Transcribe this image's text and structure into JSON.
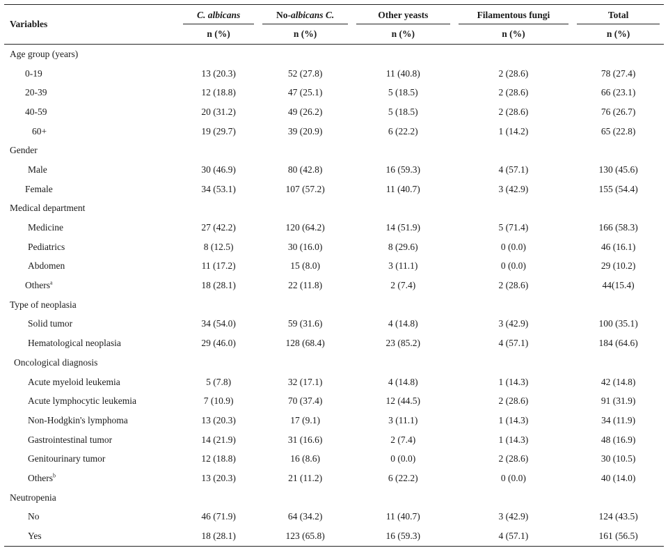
{
  "header": {
    "variables": "Variables",
    "columns": [
      {
        "pre": "",
        "italic": "C. albicans",
        "post": ""
      },
      {
        "pre": "No-",
        "italic": "albicans C.",
        "post": ""
      },
      {
        "pre": "Other yeasts",
        "italic": "",
        "post": ""
      },
      {
        "pre": "Filamentous fungi",
        "italic": "",
        "post": ""
      },
      {
        "pre": "Total",
        "italic": "",
        "post": ""
      }
    ],
    "sub": "n (%)"
  },
  "rows": [
    {
      "type": "cat",
      "label": "Age group (years)"
    },
    {
      "type": "item",
      "label": "0-19",
      "sup": "",
      "indent": "indent2",
      "v": [
        "13 (20.3)",
        "52 (27.8)",
        "11 (40.8)",
        "2 (28.6)",
        "78 (27.4)"
      ]
    },
    {
      "type": "item",
      "label": "20-39",
      "sup": "",
      "indent": "indent2",
      "v": [
        "12 (18.8)",
        "47 (25.1)",
        "5 (18.5)",
        "2 (28.6)",
        "66 (23.1)"
      ]
    },
    {
      "type": "item",
      "label": "40-59",
      "sup": "",
      "indent": "indent2",
      "v": [
        "20 (31.2)",
        "49 (26.2)",
        "5 (18.5)",
        "2 (28.6)",
        "76 (26.7)"
      ]
    },
    {
      "type": "item",
      "label": "60+",
      "sup": "",
      "indent": "indent3",
      "v": [
        "19 (29.7)",
        "39 (20.9)",
        "6 (22.2)",
        "1 (14.2)",
        "65 (22.8)"
      ]
    },
    {
      "type": "cat",
      "label": "Gender"
    },
    {
      "type": "item",
      "label": "Male",
      "sup": "",
      "indent": "",
      "v": [
        "30 (46.9)",
        "80 (42.8)",
        "16 (59.3)",
        "4 (57.1)",
        "130 (45.6)"
      ]
    },
    {
      "type": "item",
      "label": "Female",
      "sup": "",
      "indent": "indent2",
      "v": [
        "34 (53.1)",
        "107 (57.2)",
        "11 (40.7)",
        "3 (42.9)",
        "155 (54.4)"
      ]
    },
    {
      "type": "cat",
      "label": "Medical department"
    },
    {
      "type": "item",
      "label": "Medicine",
      "sup": "",
      "indent": "",
      "v": [
        "27 (42.2)",
        "120 (64.2)",
        "14 (51.9)",
        "5 (71.4)",
        "166 (58.3)"
      ]
    },
    {
      "type": "item",
      "label": "Pediatrics",
      "sup": "",
      "indent": "",
      "v": [
        "8 (12.5)",
        "30 (16.0)",
        "8 (29.6)",
        "0 (0.0)",
        "46 (16.1)"
      ]
    },
    {
      "type": "item",
      "label": "Abdomen",
      "sup": "",
      "indent": "",
      "v": [
        "11 (17.2)",
        "15 (8.0)",
        "3 (11.1)",
        "0 (0.0)",
        "29 (10.2)"
      ]
    },
    {
      "type": "item",
      "label": "Others",
      "sup": "a",
      "indent": "indent2",
      "v": [
        "18 (28.1)",
        "22 (11.8)",
        "2 (7.4)",
        "2 (28.6)",
        "44(15.4)"
      ]
    },
    {
      "type": "cat",
      "label": "Type of neoplasia"
    },
    {
      "type": "item",
      "label": "Solid tumor",
      "sup": "",
      "indent": "",
      "v": [
        "34 (54.0)",
        "59 (31.6)",
        "4 (14.8)",
        "3 (42.9)",
        "100 (35.1)"
      ]
    },
    {
      "type": "item",
      "label": "Hematological neoplasia",
      "sup": "",
      "indent": "",
      "v": [
        "29 (46.0)",
        "128 (68.4)",
        "23 (85.2)",
        "4 (57.1)",
        "184 (64.6)"
      ]
    },
    {
      "type": "cat",
      "label": "Oncological diagnosis",
      "subcat": true
    },
    {
      "type": "item",
      "label": "Acute myeloid leukemia",
      "sup": "",
      "indent": "",
      "v": [
        "5 (7.8)",
        "32 (17.1)",
        "4 (14.8)",
        "1 (14.3)",
        "42 (14.8)"
      ]
    },
    {
      "type": "item",
      "label": "Acute lymphocytic leukemia",
      "sup": "",
      "indent": "",
      "v": [
        "7 (10.9)",
        "70 (37.4)",
        "12 (44.5)",
        "2 (28.6)",
        "91 (31.9)"
      ]
    },
    {
      "type": "item",
      "label": "Non-Hodgkin's lymphoma",
      "sup": "",
      "indent": "",
      "v": [
        "13 (20.3)",
        "17 (9.1)",
        "3 (11.1)",
        "1 (14.3)",
        "34 (11.9)"
      ]
    },
    {
      "type": "item",
      "label": "Gastrointestinal tumor",
      "sup": "",
      "indent": "",
      "v": [
        "14 (21.9)",
        "31 (16.6)",
        "2 (7.4)",
        "1 (14.3)",
        "48 (16.9)"
      ]
    },
    {
      "type": "item",
      "label": "Genitourinary tumor",
      "sup": "",
      "indent": "",
      "v": [
        "12 (18.8)",
        "16 (8.6)",
        "0 (0.0)",
        "2 (28.6)",
        "30 (10.5)"
      ]
    },
    {
      "type": "item",
      "label": "Others",
      "sup": "b",
      "indent": "",
      "v": [
        "13 (20.3)",
        "21 (11.2)",
        "6 (22.2)",
        "0 (0.0)",
        "40 (14.0)"
      ]
    },
    {
      "type": "cat",
      "label": "Neutropenia"
    },
    {
      "type": "item",
      "label": "No",
      "sup": "",
      "indent": "",
      "v": [
        "46 (71.9)",
        "64 (34.2)",
        "11 (40.7)",
        "3 (42.9)",
        "124 (43.5)"
      ]
    },
    {
      "type": "item",
      "label": "Yes",
      "sup": "",
      "indent": "",
      "v": [
        "18 (28.1)",
        "123 (65.8)",
        "16 (59.3)",
        "4 (57.1)",
        "161 (56.5)"
      ]
    }
  ]
}
